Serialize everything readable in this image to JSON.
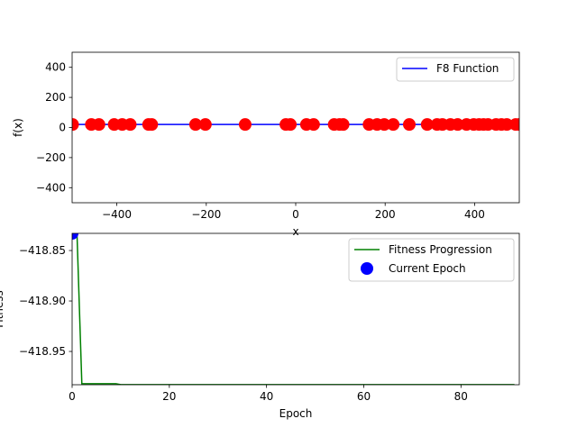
{
  "chart_data": [
    {
      "type": "scatter",
      "xlim": [
        -500,
        500
      ],
      "ylim": [
        -500,
        500
      ],
      "xticks": [
        -400,
        -200,
        0,
        200,
        400
      ],
      "yticks": [
        -400,
        -200,
        0,
        200,
        400
      ],
      "xtick_labels": [
        "−400",
        "−200",
        "0",
        "200",
        "400"
      ],
      "ytick_labels": [
        "−400",
        "−200",
        "0",
        "200",
        "400"
      ],
      "xlabel": "x",
      "ylabel": "f(x)",
      "grid": false,
      "legend_position": "upper-right",
      "series": [
        {
          "name": "F8 Function",
          "kind": "line",
          "color": "#0000ff",
          "x": [
            -500,
            500
          ],
          "y": [
            20,
            20
          ]
        },
        {
          "kind": "points",
          "color": "#ff0000",
          "x": [
            -499,
            -457,
            -440,
            -406,
            -388,
            -370,
            -329,
            -322,
            -224,
            -202,
            -113,
            -22,
            -12,
            24,
            40,
            86,
            98,
            106,
            164,
            182,
            198,
            218,
            254,
            294,
            316,
            328,
            346,
            362,
            382,
            398,
            410,
            420,
            430,
            448,
            460,
            472,
            492,
            500
          ],
          "y": [
            20,
            20,
            20,
            20,
            20,
            20,
            20,
            20,
            20,
            20,
            20,
            20,
            20,
            20,
            20,
            20,
            20,
            20,
            20,
            20,
            20,
            20,
            20,
            20,
            20,
            20,
            20,
            20,
            20,
            20,
            20,
            20,
            20,
            20,
            20,
            20,
            20,
            20
          ]
        }
      ]
    },
    {
      "type": "line",
      "xlim": [
        0,
        92
      ],
      "ylim": [
        -418.983,
        -418.833
      ],
      "xticks": [
        0,
        20,
        40,
        60,
        80
      ],
      "yticks": [
        -418.85,
        -418.9,
        -418.95
      ],
      "xtick_labels": [
        "0",
        "20",
        "40",
        "60",
        "80"
      ],
      "ytick_labels": [
        "−418.85",
        "−418.90",
        "−418.95"
      ],
      "xlabel": "Epoch",
      "ylabel": "Fitness",
      "grid": false,
      "legend_position": "upper-right",
      "series": [
        {
          "name": "Fitness Progression",
          "kind": "line",
          "color": "#008000",
          "x": [
            0,
            1,
            2,
            9,
            10,
            17,
            18,
            91
          ],
          "y": [
            -418.833,
            -418.833,
            -418.982,
            -418.982,
            -418.9829,
            -418.9829,
            -418.9829,
            -418.9829
          ]
        },
        {
          "name": "Current Epoch",
          "kind": "points",
          "color": "#0000ff",
          "x": [
            0
          ],
          "y": [
            -418.833
          ]
        }
      ]
    }
  ]
}
